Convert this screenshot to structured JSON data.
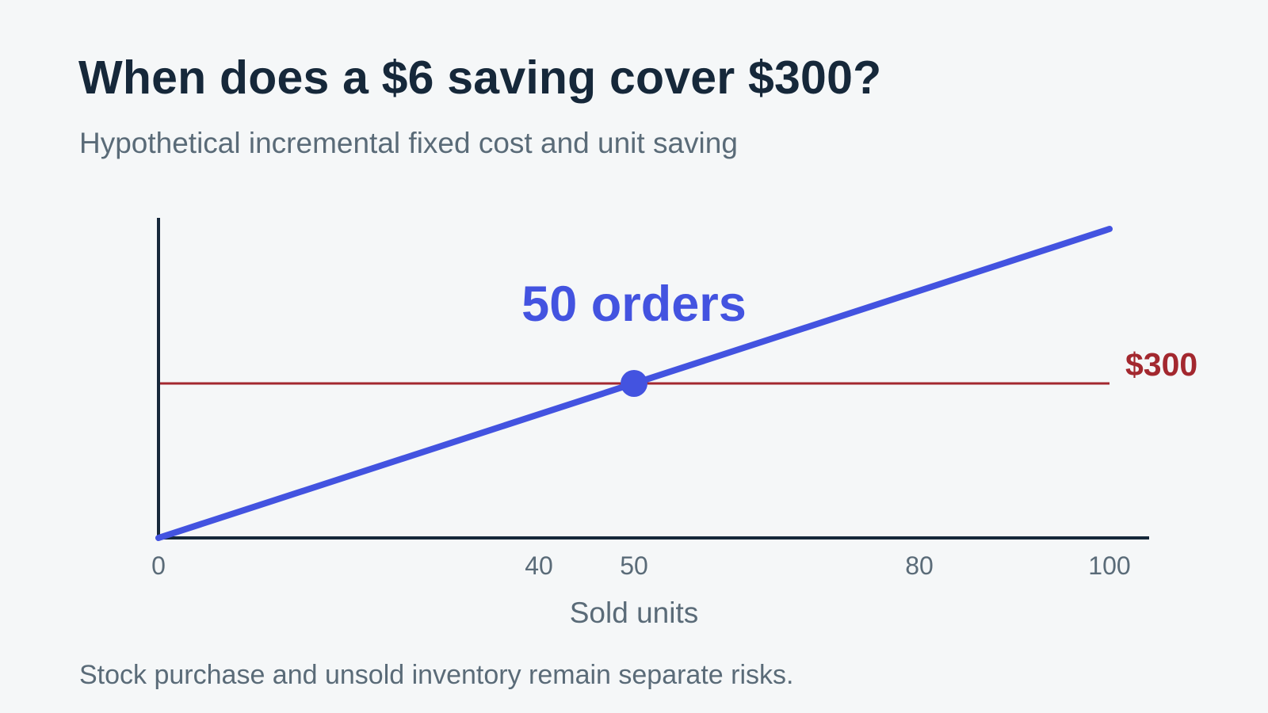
{
  "title": "When does a $6 saving cover $300?",
  "subtitle": "Hypothetical incremental fixed cost and unit saving",
  "footnote": "Stock purchase and unsold inventory remain separate risks.",
  "colors": {
    "line": "#4353e0",
    "threshold": "#a3282f",
    "axis": "#16283a",
    "text": "#5a6b78"
  },
  "chart_data": {
    "type": "line",
    "xlabel": "Sold units",
    "ylabel": "",
    "xlim": [
      0,
      100
    ],
    "ylim": [
      0,
      600
    ],
    "grid": false,
    "x_ticks": [
      0,
      40,
      50,
      80,
      100
    ],
    "series": [
      {
        "x": [
          0,
          100
        ],
        "values": [
          0,
          600
        ]
      }
    ],
    "threshold": {
      "value": 300,
      "label": "$300"
    },
    "highlight_point": {
      "x": 50,
      "y": 300
    },
    "annotation": "50 orders"
  }
}
